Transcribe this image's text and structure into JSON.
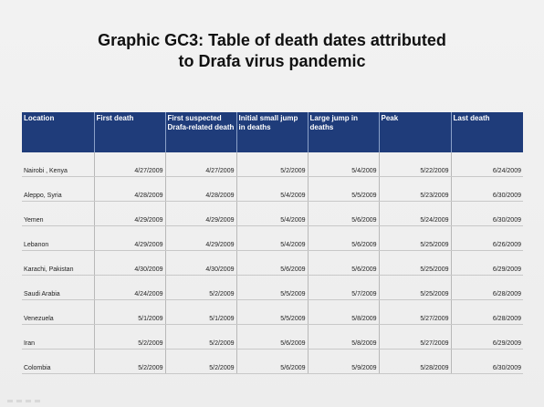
{
  "title": {
    "line1": "Graphic GC3: Table of death dates attributed",
    "line2": "to Drafa virus pandemic"
  },
  "table": {
    "columns": [
      "Location",
      "First death",
      "First suspected Drafa-related death",
      "Initial small jump in deaths",
      "Large jump in deaths",
      "Peak",
      "Last death"
    ],
    "rows": [
      [
        "Nairobi , Kenya",
        "4/27/2009",
        "4/27/2009",
        "5/2/2009",
        "5/4/2009",
        "5/22/2009",
        "6/24/2009"
      ],
      [
        "Aleppo, Syria",
        "4/28/2009",
        "4/28/2009",
        "5/4/2009",
        "5/5/2009",
        "5/23/2009",
        "6/30/2009"
      ],
      [
        "Yemen",
        "4/29/2009",
        "4/29/2009",
        "5/4/2009",
        "5/6/2009",
        "5/24/2009",
        "6/30/2009"
      ],
      [
        "Lebanon",
        "4/29/2009",
        "4/29/2009",
        "5/4/2009",
        "5/6/2009",
        "5/25/2009",
        "6/26/2009"
      ],
      [
        "Karachi, Pakistan",
        "4/30/2009",
        "4/30/2009",
        "5/6/2009",
        "5/6/2009",
        "5/25/2009",
        "6/29/2009"
      ],
      [
        "Saudi Arabia",
        "4/24/2009",
        "5/2/2009",
        "5/5/2009",
        "5/7/2009",
        "5/25/2009",
        "6/28/2009"
      ],
      [
        "Venezuela",
        "5/1/2009",
        "5/1/2009",
        "5/5/2009",
        "5/8/2009",
        "5/27/2009",
        "6/28/2009"
      ],
      [
        "Iran",
        "5/2/2009",
        "5/2/2009",
        "5/6/2009",
        "5/8/2009",
        "5/27/2009",
        "6/29/2009"
      ],
      [
        "Colombia",
        "5/2/2009",
        "5/2/2009",
        "5/6/2009",
        "5/9/2009",
        "5/28/2009",
        "6/30/2009"
      ]
    ]
  },
  "colors": {
    "header_bg": "#1f3c7a",
    "header_text": "#ffffff"
  }
}
